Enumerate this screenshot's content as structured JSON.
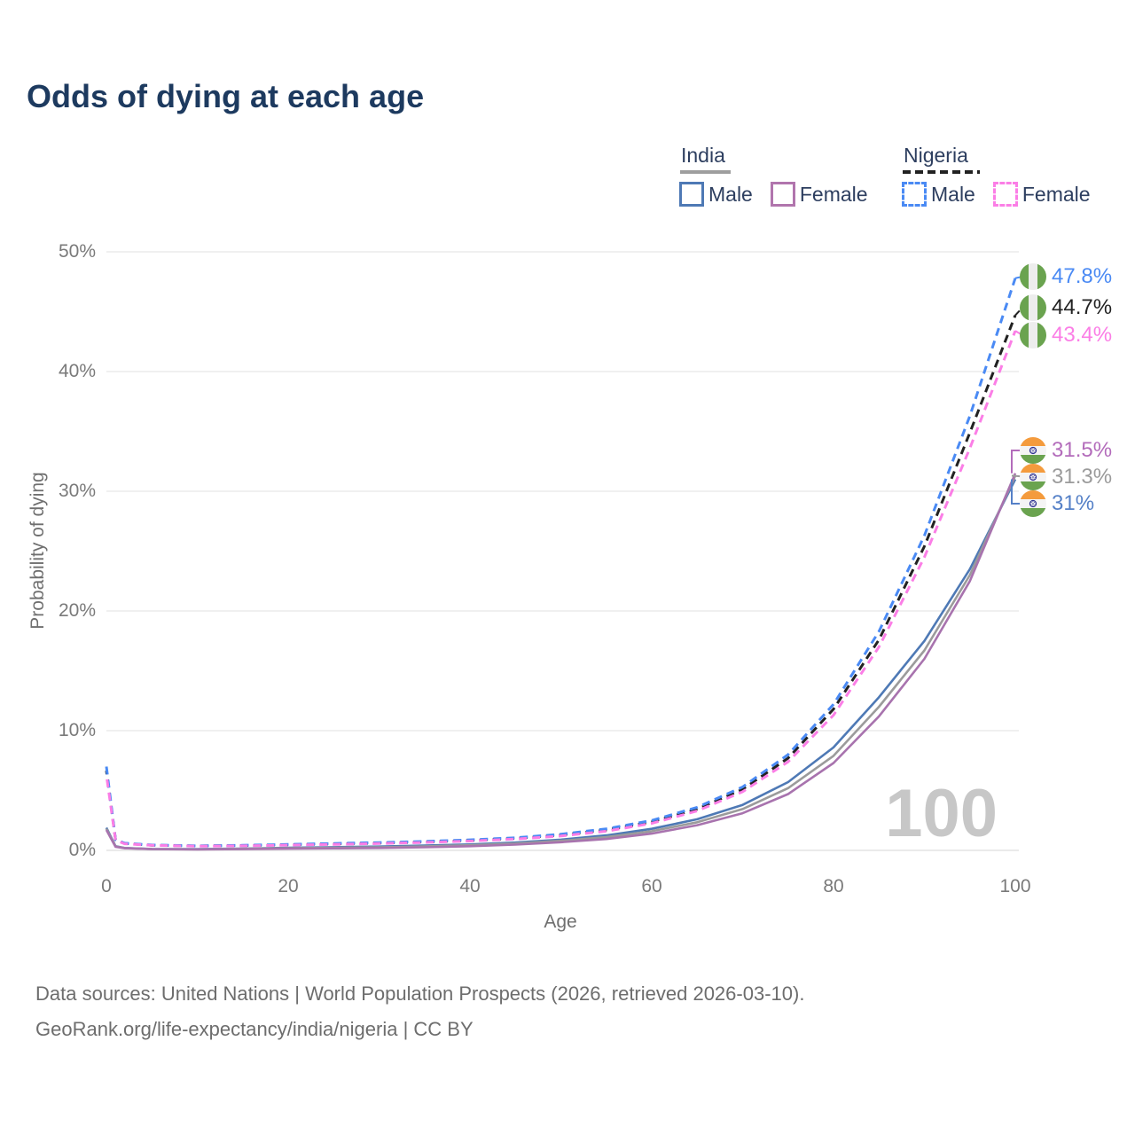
{
  "title": "Odds of dying at each age",
  "watermark": "100",
  "legend": {
    "groups": [
      {
        "label": "India",
        "underline_style": "solid",
        "underline_color": "#9e9e9e",
        "items": [
          {
            "label": "Male",
            "color": "#4e79b5",
            "style": "solid"
          },
          {
            "label": "Female",
            "color": "#b175ad",
            "style": "solid"
          }
        ]
      },
      {
        "label": "Nigeria",
        "underline_style": "dashed",
        "underline_color": "#222222",
        "items": [
          {
            "label": "Male",
            "color": "#4a8af4",
            "style": "dashed"
          },
          {
            "label": "Female",
            "color": "#fb7ee6",
            "style": "dashed"
          }
        ]
      }
    ]
  },
  "axes": {
    "x_label": "Age",
    "y_label": "Probability of dying",
    "x_ticks": [
      0,
      20,
      40,
      60,
      80,
      100
    ],
    "y_ticks": [
      {
        "v": 0,
        "label": "0%"
      },
      {
        "v": 10,
        "label": "10%"
      },
      {
        "v": 20,
        "label": "20%"
      },
      {
        "v": 30,
        "label": "30%"
      },
      {
        "v": 40,
        "label": "40%"
      },
      {
        "v": 50,
        "label": "50%"
      }
    ]
  },
  "end_labels": [
    {
      "id": "nigeria-male",
      "flag": "nigeria",
      "text": "47.8%",
      "value": 47.8,
      "color": "#4a8af4",
      "style": "dashed"
    },
    {
      "id": "nigeria-total",
      "flag": "nigeria",
      "text": "44.7%",
      "value": 44.7,
      "color": "#222222",
      "style": "dashed"
    },
    {
      "id": "nigeria-female",
      "flag": "nigeria",
      "text": "43.4%",
      "value": 43.4,
      "color": "#fb7ee6",
      "style": "dashed"
    },
    {
      "id": "india-female",
      "flag": "india",
      "text": "31.5%",
      "value": 31.5,
      "color": "#b36cbb",
      "style": "solid"
    },
    {
      "id": "india-total",
      "flag": "india",
      "text": "31.3%",
      "value": 31.3,
      "color": "#9b9b9b",
      "style": "solid"
    },
    {
      "id": "india-male",
      "flag": "india",
      "text": "31%",
      "value": 31.0,
      "color": "#5580c7",
      "style": "solid"
    }
  ],
  "footer": {
    "line1": "Data sources: United Nations | World Population Prospects (2026, retrieved 2026-03-10).",
    "line2": "GeoRank.org/life-expectancy/india/nigeria | CC BY"
  },
  "chart_data": {
    "type": "line",
    "title": "Odds of dying at each age",
    "xlabel": "Age",
    "ylabel": "Probability of dying",
    "xlim": [
      0,
      100
    ],
    "ylim": [
      0,
      50
    ],
    "grid": "horizontal",
    "legend_position": "top-right",
    "ages": [
      0,
      1,
      2,
      5,
      10,
      15,
      20,
      25,
      30,
      35,
      40,
      45,
      50,
      55,
      60,
      65,
      70,
      75,
      80,
      85,
      90,
      95,
      100
    ],
    "series": [
      {
        "id": "india-male",
        "name": "India Male",
        "country": "India",
        "sex": "Male",
        "style": "solid",
        "color": "#4e79b5",
        "values": [
          1.9,
          0.35,
          0.2,
          0.12,
          0.1,
          0.15,
          0.22,
          0.27,
          0.32,
          0.4,
          0.5,
          0.65,
          0.9,
          1.25,
          1.8,
          2.6,
          3.8,
          5.7,
          8.6,
          12.8,
          17.5,
          23.5,
          31.0
        ]
      },
      {
        "id": "india-total",
        "name": "India Both sexes",
        "country": "India",
        "sex": "Both",
        "style": "solid",
        "color": "#9b9b9b",
        "values": [
          1.8,
          0.33,
          0.19,
          0.11,
          0.09,
          0.13,
          0.18,
          0.22,
          0.26,
          0.33,
          0.43,
          0.57,
          0.8,
          1.1,
          1.6,
          2.35,
          3.45,
          5.2,
          7.9,
          12.0,
          16.7,
          23.0,
          31.3
        ]
      },
      {
        "id": "india-female",
        "name": "India Female",
        "country": "India",
        "sex": "Female",
        "style": "solid",
        "color": "#a873ae",
        "values": [
          1.7,
          0.3,
          0.18,
          0.1,
          0.08,
          0.1,
          0.14,
          0.17,
          0.2,
          0.26,
          0.35,
          0.48,
          0.68,
          0.95,
          1.4,
          2.1,
          3.1,
          4.7,
          7.3,
          11.2,
          16.0,
          22.5,
          31.5
        ]
      },
      {
        "id": "nigeria-total",
        "name": "Nigeria Both sexes",
        "country": "Nigeria",
        "sex": "Both",
        "style": "dashed",
        "color": "#222222",
        "values": [
          6.65,
          0.88,
          0.58,
          0.43,
          0.37,
          0.4,
          0.47,
          0.54,
          0.61,
          0.7,
          0.83,
          1.0,
          1.28,
          1.7,
          2.38,
          3.45,
          5.1,
          7.7,
          11.8,
          17.6,
          25.4,
          34.9,
          44.7
        ]
      },
      {
        "id": "nigeria-male",
        "name": "Nigeria Male",
        "country": "Nigeria",
        "sex": "Male",
        "style": "dashed",
        "color": "#4a8af4",
        "values": [
          7.0,
          0.9,
          0.6,
          0.45,
          0.38,
          0.42,
          0.5,
          0.58,
          0.65,
          0.75,
          0.88,
          1.05,
          1.35,
          1.8,
          2.5,
          3.6,
          5.3,
          8.0,
          12.2,
          18.3,
          26.3,
          36.3,
          47.8
        ]
      },
      {
        "id": "nigeria-female",
        "name": "Nigeria Female",
        "country": "Nigeria",
        "sex": "Female",
        "style": "dashed",
        "color": "#fb7ee6",
        "values": [
          6.3,
          0.85,
          0.55,
          0.42,
          0.35,
          0.38,
          0.44,
          0.5,
          0.57,
          0.66,
          0.78,
          0.95,
          1.2,
          1.6,
          2.25,
          3.3,
          4.9,
          7.4,
          11.3,
          17.0,
          24.5,
          33.6,
          43.4
        ]
      }
    ]
  }
}
